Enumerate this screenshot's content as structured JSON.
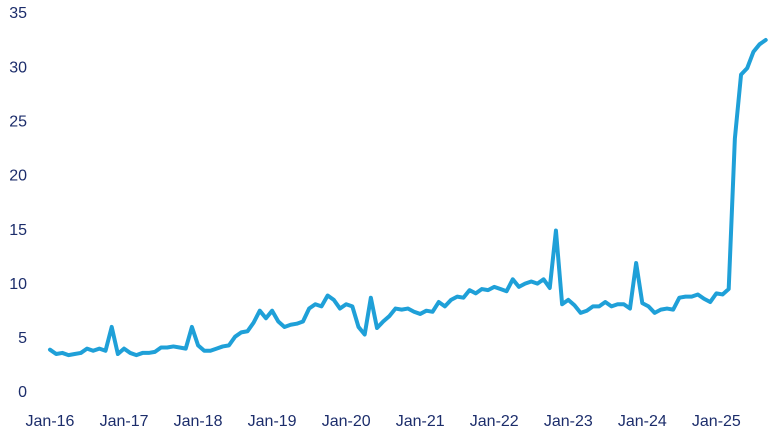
{
  "chart_data": {
    "type": "line",
    "categories": [
      "Jan-16",
      null,
      null,
      null,
      null,
      null,
      null,
      null,
      null,
      null,
      null,
      null,
      "Jan-17",
      null,
      null,
      null,
      null,
      null,
      null,
      null,
      null,
      null,
      null,
      null,
      "Jan-18",
      null,
      null,
      null,
      null,
      null,
      null,
      null,
      null,
      null,
      null,
      null,
      "Jan-19",
      null,
      null,
      null,
      null,
      null,
      null,
      null,
      null,
      null,
      null,
      null,
      "Jan-20",
      null,
      null,
      null,
      null,
      null,
      null,
      null,
      null,
      null,
      null,
      null,
      "Jan-21",
      null,
      null,
      null,
      null,
      null,
      null,
      null,
      null,
      null,
      null,
      null,
      "Jan-22",
      null,
      null,
      null,
      null,
      null,
      null,
      null,
      null,
      null,
      null,
      null,
      "Jan-23",
      null,
      null,
      null,
      null,
      null,
      null,
      null,
      null,
      null,
      null,
      null,
      "Jan-24",
      null,
      null,
      null,
      null,
      null,
      null,
      null,
      null,
      null,
      null,
      null,
      "Jan-25",
      null,
      null,
      null,
      null,
      null,
      null,
      null,
      null
    ],
    "values": [
      4.0,
      3.6,
      3.7,
      3.5,
      3.6,
      3.7,
      4.1,
      3.9,
      4.1,
      3.9,
      6.1,
      3.6,
      4.1,
      3.7,
      3.5,
      3.7,
      3.7,
      3.8,
      4.2,
      4.2,
      4.3,
      4.2,
      4.1,
      6.1,
      4.4,
      3.9,
      3.9,
      4.1,
      4.3,
      4.4,
      5.2,
      5.6,
      5.7,
      6.5,
      7.6,
      6.9,
      7.6,
      6.6,
      6.1,
      6.3,
      6.4,
      6.6,
      7.8,
      8.2,
      8.0,
      9.0,
      8.6,
      7.8,
      8.2,
      8.0,
      6.1,
      5.4,
      8.8,
      6.0,
      6.6,
      7.1,
      7.8,
      7.7,
      7.8,
      7.5,
      7.3,
      7.6,
      7.5,
      8.4,
      8.0,
      8.6,
      8.9,
      8.8,
      9.5,
      9.2,
      9.6,
      9.5,
      9.8,
      9.6,
      9.4,
      10.5,
      9.8,
      10.1,
      10.3,
      10.1,
      10.5,
      9.7,
      15.0,
      8.2,
      8.6,
      8.1,
      7.4,
      7.6,
      8.0,
      8.0,
      8.4,
      8.0,
      8.2,
      8.2,
      7.8,
      12.0,
      8.3,
      8.0,
      7.4,
      7.7,
      7.8,
      7.7,
      8.8,
      8.9,
      8.9,
      9.1,
      8.7,
      8.4,
      9.2,
      9.1,
      9.6,
      23.5,
      29.4,
      30.0,
      31.5,
      32.2,
      32.6
    ],
    "color": "#1fa0d8",
    "ylim": [
      0,
      35
    ],
    "yticks": [
      0,
      5,
      10,
      15,
      20,
      25,
      30,
      35
    ],
    "grid": false
  }
}
